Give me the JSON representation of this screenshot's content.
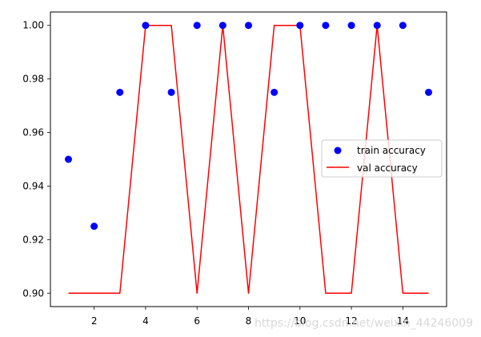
{
  "chart_data": {
    "type": "line",
    "x": [
      1,
      2,
      3,
      4,
      5,
      6,
      7,
      8,
      9,
      10,
      11,
      12,
      13,
      14,
      15
    ],
    "series": [
      {
        "name": "train accuracy",
        "style": "scatter",
        "color": "#0000ff",
        "values": [
          0.95,
          0.925,
          0.975,
          1.0,
          0.975,
          1.0,
          1.0,
          1.0,
          0.975,
          1.0,
          1.0,
          1.0,
          1.0,
          1.0,
          0.975
        ]
      },
      {
        "name": "val accuracy",
        "style": "line",
        "color": "#ff0000",
        "values": [
          0.9,
          0.9,
          0.9,
          1.0,
          1.0,
          0.9,
          1.0,
          0.9,
          1.0,
          1.0,
          0.9,
          0.9,
          1.0,
          0.9,
          0.9
        ]
      }
    ],
    "xticks": [
      2,
      4,
      6,
      8,
      10,
      12,
      14
    ],
    "yticks": [
      0.9,
      0.92,
      0.94,
      0.96,
      0.98,
      1.0
    ],
    "xtick_labels": [
      "2",
      "4",
      "6",
      "8",
      "10",
      "12",
      "14"
    ],
    "ytick_labels": [
      "0.90",
      "0.92",
      "0.94",
      "0.96",
      "0.98",
      "1.00"
    ],
    "xlim": [
      0.3,
      15.7
    ],
    "ylim": [
      0.895,
      1.005
    ],
    "title": "",
    "xlabel": "",
    "ylabel": "",
    "grid": false,
    "legend_position": "center-right"
  },
  "watermark": "https://blog.csdn.net/weixin_44246009"
}
